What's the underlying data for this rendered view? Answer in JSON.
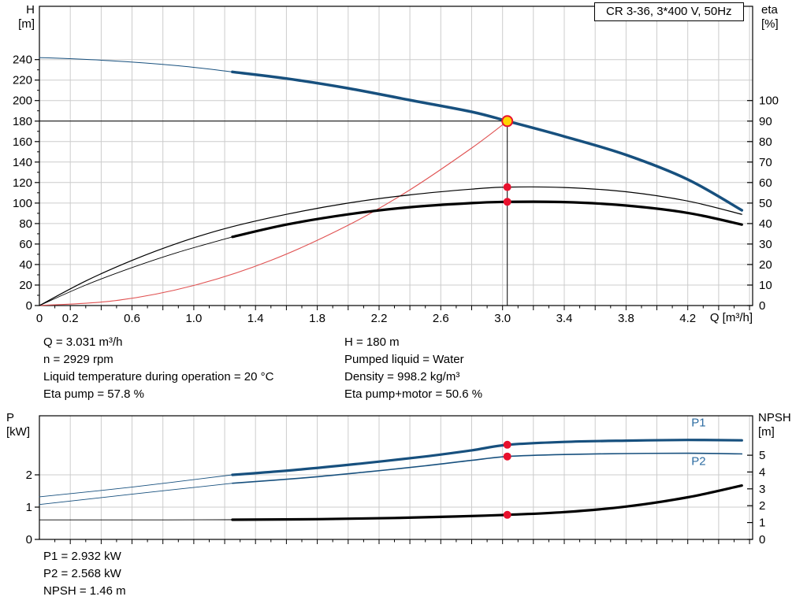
{
  "title_box": "CR 3-36, 3*400 V, 50Hz",
  "colors": {
    "blue": "#17507e",
    "black": "#000000",
    "red": "#e05252",
    "dot": "#e8112d",
    "duty_fill": "#ffd400",
    "grid": "#cccccc",
    "curve_label": "#2d6ca2"
  },
  "annotations": {
    "top_left": [
      "Q = 3.031 m³/h",
      "n = 2929 rpm",
      "Liquid temperature during operation = 20 °C",
      "Eta pump = 57.8 %"
    ],
    "top_right": [
      "H = 180 m",
      "Pumped liquid = Water",
      "Density = 998.2 kg/m³",
      "Eta pump+motor = 50.6 %"
    ],
    "bottom": [
      "P1 = 2.932 kW",
      "P2 = 2.568 kW",
      "NPSH = 1.46 m"
    ]
  },
  "chart_data": [
    {
      "type": "line",
      "name": "head-and-efficiency-chart",
      "x_axis": {
        "label": "Q [m³/h]",
        "min": 0,
        "max": 4.62,
        "grid_step": 0.2,
        "minor_step": 0.1,
        "labeled_ticks": [
          {
            "v": 0,
            "t": "0"
          },
          {
            "v": 0.2,
            "t": "0.2"
          },
          {
            "v": 0.6,
            "t": "0.6"
          },
          {
            "v": 1.0,
            "t": "1.0"
          },
          {
            "v": 1.4,
            "t": "1.4"
          },
          {
            "v": 1.8,
            "t": "1.8"
          },
          {
            "v": 2.2,
            "t": "2.2"
          },
          {
            "v": 2.6,
            "t": "2.6"
          },
          {
            "v": 3.0,
            "t": "3.0"
          },
          {
            "v": 3.4,
            "t": "3.4"
          },
          {
            "v": 3.8,
            "t": "3.8"
          },
          {
            "v": 4.2,
            "t": "4.2"
          }
        ]
      },
      "left_axis": {
        "name": "H",
        "unit": "[m]",
        "min": 0,
        "max": 292,
        "minor_step": 10,
        "ticks": [
          0,
          20,
          40,
          60,
          80,
          100,
          120,
          140,
          160,
          180,
          200,
          220,
          240
        ]
      },
      "right_axis": {
        "name": "eta",
        "unit": "[%]",
        "min": 0,
        "max": 146,
        "ticks": [
          0,
          10,
          20,
          30,
          40,
          50,
          60,
          70,
          80,
          90,
          100
        ]
      },
      "series": [
        {
          "name": "head-curve-lead-in",
          "axis": "left",
          "color": "blue",
          "width": 1,
          "points": [
            [
              0,
              242
            ],
            [
              0.45,
              239
            ],
            [
              0.9,
              234
            ],
            [
              1.25,
              228
            ]
          ]
        },
        {
          "name": "head-curve",
          "axis": "left",
          "color": "blue",
          "width": 3.5,
          "points": [
            [
              1.25,
              228
            ],
            [
              1.6,
              221.5
            ],
            [
              2.0,
              212
            ],
            [
              2.4,
              200.5
            ],
            [
              2.8,
              189
            ],
            [
              3.031,
              180
            ],
            [
              3.4,
              165
            ],
            [
              3.8,
              147
            ],
            [
              4.2,
              123
            ],
            [
              4.55,
              93
            ]
          ]
        },
        {
          "name": "system-curve",
          "axis": "left",
          "color": "red",
          "width": 1.1,
          "points": [
            [
              0,
              0
            ],
            [
              0.5,
              4.9
            ],
            [
              1.0,
              19.6
            ],
            [
              1.5,
              44.1
            ],
            [
              2.0,
              78.4
            ],
            [
              2.4,
              112.9
            ],
            [
              2.8,
              153.7
            ],
            [
              3.031,
              180
            ]
          ]
        },
        {
          "name": "eta-pump-curve",
          "axis": "right",
          "color": "black",
          "width": 1.2,
          "points": [
            [
              0,
              0
            ],
            [
              0.3,
              12
            ],
            [
              0.6,
              22
            ],
            [
              0.9,
              30.5
            ],
            [
              1.2,
              37.5
            ],
            [
              1.6,
              44.5
            ],
            [
              2.0,
              50
            ],
            [
              2.4,
              54
            ],
            [
              2.8,
              56.8
            ],
            [
              3.031,
              57.8
            ],
            [
              3.4,
              57.6
            ],
            [
              3.8,
              55.5
            ],
            [
              4.2,
              51
            ],
            [
              4.55,
              44.5
            ]
          ]
        },
        {
          "name": "eta-pump-motor-lead-in",
          "axis": "right",
          "color": "black",
          "width": 0.9,
          "points": [
            [
              0,
              0
            ],
            [
              0.3,
              10
            ],
            [
              0.6,
              18.5
            ],
            [
              0.9,
              26
            ],
            [
              1.25,
              33.5
            ]
          ]
        },
        {
          "name": "eta-pump-motor-curve",
          "axis": "right",
          "color": "black",
          "width": 3.2,
          "points": [
            [
              1.25,
              33.5
            ],
            [
              1.6,
              39.5
            ],
            [
              2.0,
              44.5
            ],
            [
              2.4,
              48
            ],
            [
              2.8,
              50
            ],
            [
              3.031,
              50.6
            ],
            [
              3.4,
              50.5
            ],
            [
              3.8,
              48.8
            ],
            [
              4.2,
              45.2
            ],
            [
              4.55,
              39.5
            ]
          ]
        }
      ],
      "ref_lines": [
        {
          "o": "h",
          "axis": "left",
          "value": 180,
          "q1": 0,
          "q2": 3.031
        },
        {
          "o": "v",
          "axis": "left",
          "q": 3.031,
          "v1": 0,
          "v2": 180
        }
      ],
      "markers": [
        {
          "style": "duty",
          "axis": "left",
          "q": 3.031,
          "value": 180
        },
        {
          "style": "dot",
          "axis": "right",
          "q": 3.031,
          "value": 57.8
        },
        {
          "style": "dot",
          "axis": "right",
          "q": 3.031,
          "value": 50.6
        }
      ],
      "curve_labels": []
    },
    {
      "type": "line",
      "name": "power-and-npsh-chart",
      "x_axis": {
        "label": "",
        "min": 0,
        "max": 4.62,
        "grid_step": 0.2,
        "minor_step": 0.1,
        "labeled_ticks": []
      },
      "left_axis": {
        "name": "P",
        "unit": "[kW]",
        "min": 0,
        "max": 3.83,
        "minor_step": null,
        "ticks": [
          0,
          1,
          2
        ]
      },
      "right_axis": {
        "name": "NPSH",
        "unit": "[m]",
        "min": 0,
        "max": 7.34,
        "ticks": [
          0,
          1,
          2,
          3,
          4,
          5
        ]
      },
      "series": [
        {
          "name": "p1-lead-in",
          "axis": "left",
          "color": "blue",
          "width": 0.9,
          "points": [
            [
              0,
              1.32
            ],
            [
              0.6,
              1.62
            ],
            [
              1.25,
              2.0
            ]
          ]
        },
        {
          "name": "p2-lead-in",
          "axis": "left",
          "color": "blue",
          "width": 0.9,
          "points": [
            [
              0,
              1.08
            ],
            [
              0.6,
              1.4
            ],
            [
              1.25,
              1.74
            ]
          ]
        },
        {
          "name": "npsh-lead-in",
          "axis": "right",
          "color": "black",
          "width": 0.9,
          "points": [
            [
              0,
              1.16
            ],
            [
              0.7,
              1.16
            ],
            [
              1.25,
              1.17
            ]
          ]
        },
        {
          "name": "p1-curve",
          "axis": "left",
          "color": "blue",
          "width": 3.2,
          "points": [
            [
              1.25,
              2.0
            ],
            [
              1.7,
              2.17
            ],
            [
              2.1,
              2.36
            ],
            [
              2.5,
              2.57
            ],
            [
              2.8,
              2.76
            ],
            [
              3.031,
              2.93
            ],
            [
              3.4,
              3.02
            ],
            [
              3.8,
              3.06
            ],
            [
              4.2,
              3.08
            ],
            [
              4.55,
              3.07
            ]
          ]
        },
        {
          "name": "p2-curve",
          "axis": "left",
          "color": "blue",
          "width": 1.6,
          "points": [
            [
              1.25,
              1.74
            ],
            [
              1.7,
              1.9
            ],
            [
              2.1,
              2.08
            ],
            [
              2.5,
              2.28
            ],
            [
              2.8,
              2.45
            ],
            [
              3.031,
              2.568
            ],
            [
              3.4,
              2.63
            ],
            [
              3.8,
              2.66
            ],
            [
              4.2,
              2.67
            ],
            [
              4.55,
              2.65
            ]
          ]
        },
        {
          "name": "npsh-curve",
          "axis": "right",
          "color": "black",
          "width": 3.2,
          "points": [
            [
              1.25,
              1.17
            ],
            [
              1.8,
              1.2
            ],
            [
              2.3,
              1.27
            ],
            [
              2.7,
              1.36
            ],
            [
              3.031,
              1.46
            ],
            [
              3.4,
              1.62
            ],
            [
              3.8,
              1.95
            ],
            [
              4.2,
              2.5
            ],
            [
              4.55,
              3.2
            ]
          ]
        }
      ],
      "ref_lines": [],
      "markers": [
        {
          "style": "dot",
          "axis": "left",
          "q": 3.031,
          "value": 2.932
        },
        {
          "style": "dot",
          "axis": "left",
          "q": 3.031,
          "value": 2.568
        },
        {
          "style": "dot",
          "axis": "right",
          "q": 3.031,
          "value": 1.46
        }
      ],
      "curve_labels": [
        {
          "text": "P1",
          "axis": "left",
          "q": 4.27,
          "value": 3.5
        },
        {
          "text": "P2",
          "axis": "left",
          "q": 4.27,
          "value": 2.3
        }
      ]
    }
  ]
}
